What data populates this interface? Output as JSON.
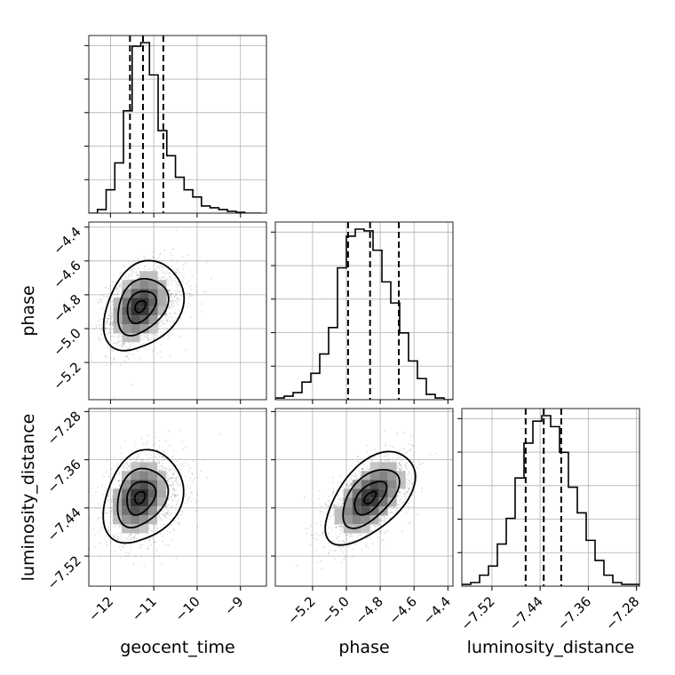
{
  "chart_data": {
    "type": "corner",
    "parameters": [
      "geocent_time",
      "phase",
      "luminosity_distance"
    ],
    "axis_labels": {
      "geocent_time": "geocent_time",
      "phase": "phase",
      "luminosity_distance": "luminosity_distance"
    },
    "ranges": {
      "geocent_time": [
        -12.5,
        -8.4
      ],
      "phase": [
        -5.42,
        -4.37
      ],
      "luminosity_distance": [
        -7.57,
        -7.275
      ]
    },
    "ticks": {
      "geocent_time": [
        -12,
        -11,
        -10,
        -9
      ],
      "phase": [
        -5.2,
        -5.0,
        -4.8,
        -4.6,
        -4.4
      ],
      "luminosity_distance": [
        -7.52,
        -7.44,
        -7.36,
        -7.28
      ]
    },
    "tick_labels": {
      "geocent_time": [
        "−12",
        "−11",
        "−10",
        "−9"
      ],
      "phase": [
        "−5.2",
        "−5.0",
        "−4.8",
        "−4.6",
        "−4.4"
      ],
      "luminosity_distance": [
        "−7.52",
        "−7.44",
        "−7.36",
        "−7.28"
      ]
    },
    "quantiles": {
      "geocent_time": [
        -11.55,
        -11.25,
        -10.78
      ],
      "phase": [
        -4.99,
        -4.86,
        -4.69
      ],
      "luminosity_distance": [
        -7.464,
        -7.434,
        -7.405
      ]
    },
    "histograms": {
      "geocent_time": {
        "edges": [
          -12.5,
          -12.3,
          -12.1,
          -11.9,
          -11.7,
          -11.5,
          -11.3,
          -11.1,
          -10.9,
          -10.7,
          -10.5,
          -10.3,
          -10.1,
          -9.9,
          -9.7,
          -9.5,
          -9.3,
          -9.1,
          -8.9,
          -8.7,
          -8.5
        ],
        "counts": [
          0,
          2,
          13,
          28,
          57,
          93,
          95,
          77,
          46,
          32,
          20,
          13,
          9,
          4,
          3,
          2,
          1,
          0.5,
          0,
          0
        ]
      },
      "phase": {
        "edges": [
          -5.42,
          -5.3675,
          -5.315,
          -5.2625,
          -5.21,
          -5.1575,
          -5.105,
          -5.0525,
          -5.0,
          -4.9475,
          -4.895,
          -4.8425,
          -4.79,
          -4.7375,
          -4.685,
          -4.6325,
          -4.58,
          -4.5275,
          -4.475,
          -4.4225,
          -4.37
        ],
        "counts": [
          1,
          2,
          4,
          10,
          15,
          26,
          41,
          75,
          93,
          97,
          96,
          85,
          67,
          55,
          38,
          22,
          12,
          3,
          1,
          0
        ]
      },
      "luminosity_distance": {
        "edges": [
          -7.57,
          -7.55525,
          -7.5405,
          -7.52575,
          -7.511,
          -7.49625,
          -7.4815,
          -7.46675,
          -7.452,
          -7.43725,
          -7.4225,
          -7.40775,
          -7.393,
          -7.37825,
          -7.3635,
          -7.34875,
          -7.334,
          -7.31925,
          -7.3045,
          -7.28975,
          -7.275
        ],
        "counts": [
          1,
          2,
          6,
          11,
          23,
          37,
          59,
          78,
          90,
          93,
          87,
          73,
          54,
          40,
          25,
          14,
          6,
          2,
          1,
          1
        ]
      }
    },
    "density_peaks": [
      {
        "x": "geocent_time",
        "y": "phase",
        "center": [
          -11.32,
          -4.87
        ],
        "sd": [
          0.38,
          0.12
        ],
        "rho": 0.3
      },
      {
        "x": "geocent_time",
        "y": "luminosity_distance",
        "center": [
          -11.33,
          -7.423
        ],
        "sd": [
          0.38,
          0.035
        ],
        "rho": 0.25
      },
      {
        "x": "phase",
        "y": "luminosity_distance",
        "center": [
          -4.86,
          -7.423
        ],
        "sd": [
          0.12,
          0.035
        ],
        "rho": 0.55
      }
    ],
    "grid": true,
    "legend": "none"
  }
}
